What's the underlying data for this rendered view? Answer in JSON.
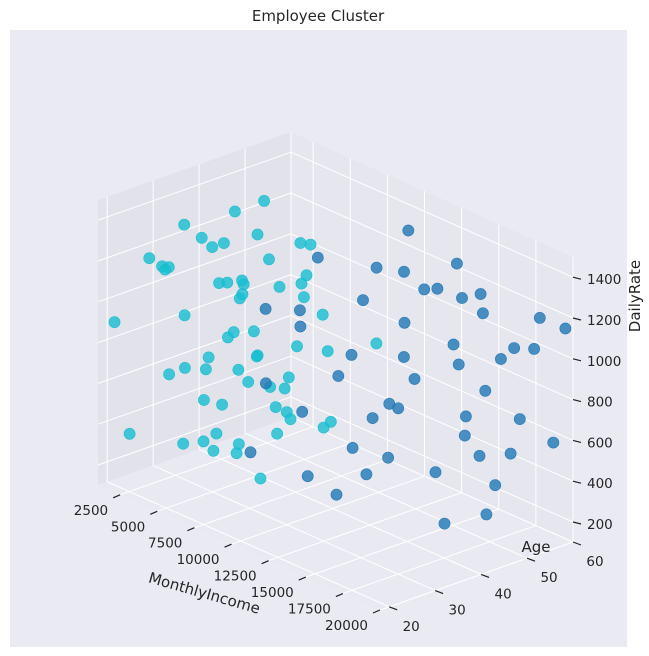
{
  "chart_data": {
    "type": "scatter",
    "projection": "3d",
    "title": "Employee Cluster",
    "xlabel": "MonthlyIncome",
    "ylabel": "Age",
    "zlabel": "DailyRate",
    "xlim": [
      1009,
      19999
    ],
    "ylim": [
      18,
      60
    ],
    "zlim": [
      102,
      1499
    ],
    "x_ticks": [
      "2500",
      "5000",
      "7500",
      "10000",
      "12500",
      "15000",
      "17500",
      "20000"
    ],
    "y_ticks": [
      "20",
      "30",
      "40",
      "50",
      "60"
    ],
    "z_ticks": [
      "200",
      "400",
      "600",
      "800",
      "1000",
      "1200",
      "1400"
    ],
    "grid": true,
    "series": [
      {
        "color": "#17becf",
        "points": [
          [
            1500,
            20,
            900
          ],
          [
            1900,
            22,
            350
          ],
          [
            2300,
            25,
            1200
          ],
          [
            2700,
            28,
            620
          ],
          [
            3100,
            30,
            1350
          ],
          [
            3500,
            33,
            480
          ],
          [
            3900,
            35,
            1050
          ],
          [
            4300,
            38,
            250
          ],
          [
            4700,
            40,
            800
          ],
          [
            5100,
            42,
            1150
          ],
          [
            5500,
            45,
            560
          ],
          [
            5900,
            47,
            950
          ],
          [
            6300,
            50,
            300
          ],
          [
            6700,
            27,
            1400
          ],
          [
            7100,
            31,
            700
          ],
          [
            7500,
            36,
            420
          ],
          [
            7900,
            24,
            1000
          ],
          [
            8300,
            29,
            880
          ],
          [
            2100,
            44,
            680
          ],
          [
            2600,
            49,
            1300
          ],
          [
            3200,
            52,
            260
          ],
          [
            3600,
            55,
            920
          ],
          [
            4100,
            58,
            540
          ],
          [
            4600,
            21,
            1250
          ],
          [
            5200,
            23,
            400
          ],
          [
            5800,
            26,
            760
          ],
          [
            6400,
            32,
            1100
          ],
          [
            7000,
            34,
            200
          ],
          [
            7700,
            37,
            640
          ],
          [
            8200,
            41,
            1330
          ],
          [
            1800,
            46,
            470
          ],
          [
            2400,
            53,
            840
          ],
          [
            3300,
            26,
            1180
          ],
          [
            4400,
            30,
            330
          ],
          [
            5300,
            35,
            1020
          ],
          [
            6100,
            39,
            580
          ],
          [
            6900,
            43,
            1280
          ],
          [
            7400,
            48,
            380
          ],
          [
            8000,
            56,
            720
          ],
          [
            1300,
            31,
            1080
          ],
          [
            2900,
            37,
            180
          ],
          [
            3700,
            41,
            990
          ],
          [
            4900,
            28,
            1360
          ],
          [
            5700,
            33,
            290
          ],
          [
            6600,
            24,
            860
          ],
          [
            7300,
            29,
            1220
          ],
          [
            8400,
            36,
            520
          ],
          [
            2200,
            39,
            1140
          ],
          [
            3400,
            45,
            600
          ],
          [
            4500,
            51,
            940
          ],
          [
            5600,
            22,
            1050
          ],
          [
            6200,
            27,
            450
          ],
          [
            6800,
            34,
            1390
          ],
          [
            7600,
            40,
            820
          ],
          [
            1600,
            35,
            560
          ],
          [
            2800,
            42,
            1310
          ],
          [
            4000,
            47,
            350
          ],
          [
            5000,
            54,
            780
          ],
          [
            6000,
            30,
            1160
          ],
          [
            7200,
            25,
            640
          ]
        ]
      },
      {
        "color": "#1f77b4",
        "points": [
          [
            9000,
            40,
            1300
          ],
          [
            10500,
            45,
            1100
          ],
          [
            12000,
            50,
            1450
          ],
          [
            13500,
            55,
            900
          ],
          [
            15000,
            52,
            1200
          ],
          [
            16500,
            48,
            700
          ],
          [
            18000,
            58,
            1000
          ],
          [
            19500,
            42,
            1350
          ],
          [
            9500,
            35,
            600
          ],
          [
            11000,
            38,
            800
          ],
          [
            12500,
            44,
            400
          ],
          [
            14000,
            47,
            1250
          ],
          [
            15500,
            51,
            550
          ],
          [
            17000,
            54,
            950
          ],
          [
            18500,
            46,
            300
          ],
          [
            19800,
            59,
            1150
          ],
          [
            8600,
            30,
            750
          ],
          [
            10000,
            33,
            1050
          ],
          [
            11500,
            36,
            250
          ],
          [
            13000,
            39,
            650
          ],
          [
            14500,
            41,
            1400
          ],
          [
            16000,
            43,
            450
          ],
          [
            17500,
            49,
            850
          ],
          [
            19000,
            56,
            1200
          ],
          [
            9200,
            28,
            1150
          ],
          [
            10800,
            32,
            350
          ],
          [
            12200,
            37,
            950
          ],
          [
            13800,
            42,
            700
          ],
          [
            15200,
            46,
            1300
          ],
          [
            16800,
            50,
            500
          ],
          [
            18200,
            53,
            1050
          ],
          [
            19600,
            57,
            600
          ],
          [
            8800,
            26,
            450
          ],
          [
            11200,
            29,
            1200
          ],
          [
            13200,
            34,
            550
          ],
          [
            14800,
            40,
            1000
          ],
          [
            16300,
            44,
            200
          ],
          [
            17800,
            47,
            1350
          ],
          [
            19200,
            51,
            750
          ],
          [
            10200,
            55,
            900
          ],
          [
            12800,
            58,
            1250
          ],
          [
            15800,
            60,
            400
          ],
          [
            18800,
            39,
            1100
          ],
          [
            9800,
            48,
            200
          ],
          [
            11800,
            52,
            700
          ],
          [
            14200,
            36,
            1450
          ],
          [
            16600,
            31,
            900
          ],
          [
            19400,
            45,
            480
          ]
        ]
      }
    ]
  }
}
